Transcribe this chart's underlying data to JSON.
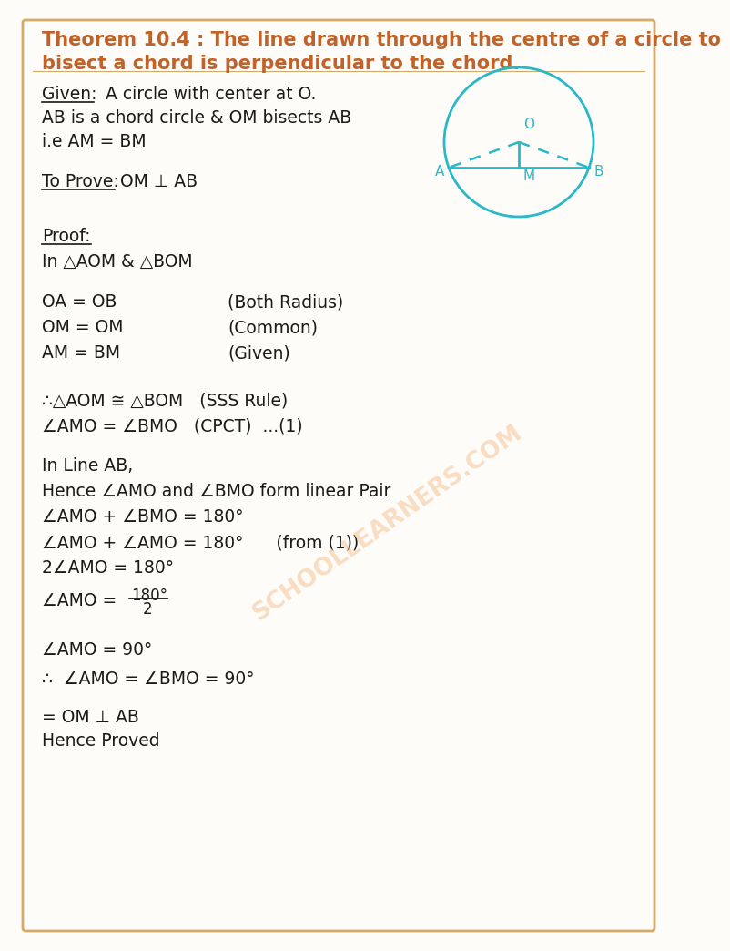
{
  "bg_color": "#fefcf8",
  "border_color": "#d4a96a",
  "title_color": "#c0632a",
  "text_color": "#1a1a1a",
  "circle_color": "#29b8c8",
  "watermark_color": "#f5c9a0",
  "title_line1": "Theorem 10.4 : The line drawn through the centre of a circle to",
  "title_line2": "bisect a chord is perpendicular to the chord.",
  "watermark": "SCHOOLLEARNERS.COM",
  "font_size": 13.5,
  "title_font_size": 15
}
